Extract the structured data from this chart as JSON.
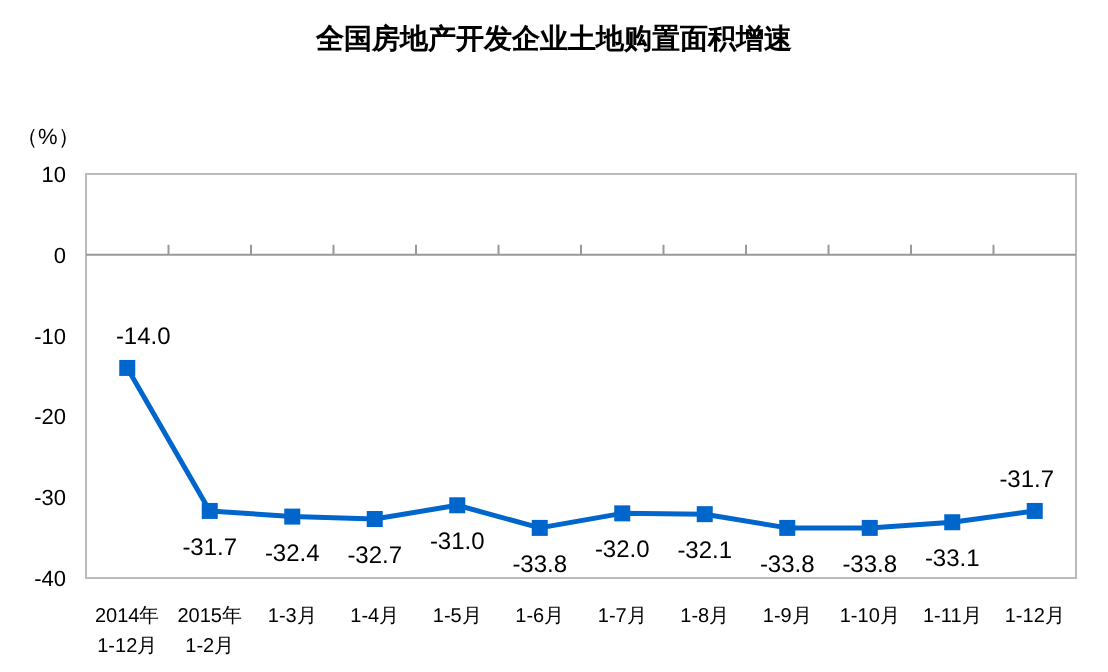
{
  "chart_data": {
    "type": "line",
    "title": "全国房地产开发企业土地购置面积增速",
    "ylabel": "（%）",
    "categories": [
      "2014年\n1-12月",
      "2015年\n1-2月",
      "1-3月",
      "1-4月",
      "1-5月",
      "1-6月",
      "1-7月",
      "1-8月",
      "1-9月",
      "1-10月",
      "1-11月",
      "1-12月"
    ],
    "series": [
      {
        "color": "#0066cc",
        "values": [
          -14.0,
          -31.7,
          -32.4,
          -32.7,
          -31.0,
          -33.8,
          -32.0,
          -32.1,
          -33.8,
          -33.8,
          -33.1,
          -31.7
        ],
        "value_labels": [
          "-14.0",
          "-31.7",
          "-32.4",
          "-32.7",
          "-31.0",
          "-33.8",
          "-32.0",
          "-32.1",
          "-33.8",
          "-33.8",
          "-33.1",
          "-31.7"
        ]
      }
    ],
    "ylim": [
      -40,
      10
    ],
    "yticks": [
      -40,
      -30,
      -20,
      -10,
      0,
      10
    ],
    "marker": "square",
    "line_style": "solid"
  }
}
